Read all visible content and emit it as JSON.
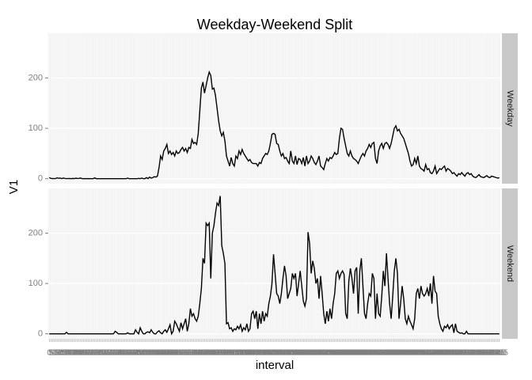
{
  "chart_data": {
    "type": "line",
    "title": "Weekday-Weekend Split",
    "x_label": "interval",
    "y_label": "V1",
    "categories": [
      0,
      5,
      10,
      15,
      20,
      25,
      30,
      35,
      40,
      45,
      50,
      55,
      100,
      105,
      110,
      115,
      120,
      125,
      130,
      135,
      140,
      145,
      150,
      155,
      200,
      205,
      210,
      215,
      220,
      225,
      230,
      235,
      240,
      245,
      250,
      255,
      300,
      305,
      310,
      315,
      320,
      325,
      330,
      335,
      340,
      345,
      350,
      355,
      400,
      405,
      410,
      415,
      420,
      425,
      430,
      435,
      440,
      445,
      450,
      455,
      500,
      505,
      510,
      515,
      520,
      525,
      530,
      535,
      540,
      545,
      550,
      555,
      600,
      605,
      610,
      615,
      620,
      625,
      630,
      635,
      640,
      645,
      650,
      655,
      700,
      705,
      710,
      715,
      720,
      725,
      730,
      735,
      740,
      745,
      750,
      755,
      800,
      805,
      810,
      815,
      820,
      825,
      830,
      835,
      840,
      845,
      850,
      855,
      900,
      905,
      910,
      915,
      920,
      925,
      930,
      935,
      940,
      945,
      950,
      955,
      1000,
      1005,
      1010,
      1015,
      1020,
      1025,
      1030,
      1035,
      1040,
      1045,
      1050,
      1055,
      1100,
      1105,
      1110,
      1115,
      1120,
      1125,
      1130,
      1135,
      1140,
      1145,
      1150,
      1155,
      1200,
      1205,
      1210,
      1215,
      1220,
      1225,
      1230,
      1235,
      1240,
      1245,
      1250,
      1255,
      1300,
      1305,
      1310,
      1315,
      1320,
      1325,
      1330,
      1335,
      1340,
      1345,
      1350,
      1355,
      1400,
      1405,
      1410,
      1415,
      1420,
      1425,
      1430,
      1435,
      1440,
      1445,
      1450,
      1455,
      1500,
      1505,
      1510,
      1515,
      1520,
      1525,
      1530,
      1535,
      1540,
      1545,
      1550,
      1555,
      1600,
      1605,
      1610,
      1615,
      1620,
      1625,
      1630,
      1635,
      1640,
      1645,
      1650,
      1655,
      1700,
      1705,
      1710,
      1715,
      1720,
      1725,
      1730,
      1735,
      1740,
      1745,
      1750,
      1755,
      1800,
      1805,
      1810,
      1815,
      1820,
      1825,
      1830,
      1835,
      1840,
      1845,
      1850,
      1855,
      1900,
      1905,
      1910,
      1915,
      1920,
      1925,
      1930,
      1935,
      1940,
      1945,
      1950,
      1955,
      2000,
      2005,
      2010,
      2015,
      2020,
      2025,
      2030,
      2035,
      2040,
      2045,
      2050,
      2055,
      2100,
      2105,
      2110,
      2115,
      2120,
      2125,
      2130,
      2135,
      2140,
      2145,
      2150,
      2155,
      2200,
      2205,
      2210,
      2215,
      2220,
      2225,
      2230,
      2235,
      2240,
      2245,
      2250,
      2255,
      2300,
      2305,
      2310,
      2315,
      2320,
      2325,
      2330,
      2335,
      2340,
      2345,
      2350,
      2355
    ],
    "ylim": [
      -10,
      289
    ],
    "yticks": [
      0,
      100,
      200
    ],
    "grid": true,
    "facet": "rows",
    "series": [
      {
        "name": "Weekday",
        "color": "#000000",
        "values": [
          2.3,
          0.5,
          0.2,
          0.2,
          0.1,
          1.6,
          0.7,
          1.1,
          0,
          1.3,
          0.3,
          0.1,
          0.1,
          0.3,
          0,
          0.4,
          0.2,
          0.8,
          0.3,
          0.5,
          1.2,
          0,
          0,
          0.2,
          0,
          0.1,
          0,
          0,
          0,
          1.5,
          0,
          0,
          0,
          0,
          0,
          0,
          0,
          0,
          0,
          0,
          0,
          0,
          0,
          0,
          0,
          0,
          0,
          0,
          0,
          0,
          1,
          0,
          0,
          0,
          0,
          0,
          0,
          0.5,
          0,
          1,
          0,
          0,
          2,
          0,
          3,
          1,
          2,
          4,
          3,
          5,
          22,
          45,
          38,
          55,
          60,
          68,
          50,
          55,
          48,
          52,
          45,
          55,
          50,
          52,
          58,
          62,
          55,
          60,
          52,
          62,
          60,
          78,
          70,
          72,
          68,
          90,
          135,
          180,
          192,
          170,
          185,
          200,
          212,
          205,
          178,
          180,
          165,
          140,
          115,
          95,
          85,
          92,
          75,
          45,
          35,
          25,
          42,
          30,
          25,
          45,
          40,
          55,
          48,
          58,
          50,
          45,
          40,
          35,
          38,
          32,
          30,
          30,
          30,
          25,
          32,
          30,
          40,
          45,
          50,
          48,
          55,
          70,
          88,
          90,
          88,
          70,
          68,
          55,
          45,
          50,
          40,
          42,
          35,
          30,
          55,
          35,
          30,
          45,
          28,
          40,
          38,
          30,
          42,
          25,
          45,
          30,
          35,
          45,
          40,
          32,
          28,
          35,
          45,
          25,
          22,
          18,
          30,
          40,
          35,
          42,
          40,
          45,
          52,
          48,
          50,
          80,
          100,
          98,
          80,
          65,
          50,
          45,
          55,
          45,
          40,
          38,
          35,
          30,
          38,
          45,
          50,
          45,
          55,
          60,
          68,
          62,
          70,
          72,
          40,
          30,
          55,
          65,
          70,
          60,
          70,
          72,
          68,
          60,
          70,
          85,
          100,
          105,
          95,
          98,
          90,
          85,
          80,
          70,
          60,
          50,
          35,
          25,
          28,
          40,
          30,
          45,
          25,
          20,
          18,
          15,
          28,
          18,
          20,
          12,
          10,
          15,
          25,
          10,
          15,
          20,
          18,
          22,
          25,
          15,
          20,
          18,
          15,
          10,
          12,
          8,
          5,
          10,
          8,
          12,
          8,
          5,
          10,
          12,
          8,
          10,
          5,
          3,
          2,
          5,
          8,
          4,
          3,
          2,
          4,
          6,
          3,
          2,
          5,
          4,
          3,
          2,
          1,
          2
        ]
      },
      {
        "name": "Weekend",
        "color": "#000000",
        "values": [
          0,
          0,
          0,
          0,
          0,
          0,
          0,
          0,
          0,
          0,
          0,
          3,
          0,
          0,
          0,
          0,
          0,
          0,
          0,
          0,
          0,
          0,
          0,
          0,
          0,
          0,
          0,
          0,
          0,
          0,
          0,
          0,
          0,
          0,
          0,
          0,
          0,
          0,
          0,
          0,
          0,
          0,
          5,
          3,
          0,
          0,
          0,
          0,
          0,
          0,
          2,
          0,
          0,
          0,
          0,
          8,
          3,
          0,
          12,
          5,
          0,
          0,
          3,
          4,
          2,
          8,
          3,
          0,
          0,
          4,
          6,
          2,
          0,
          5,
          8,
          3,
          10,
          18,
          0,
          5,
          25,
          20,
          12,
          5,
          22,
          10,
          20,
          30,
          5,
          20,
          50,
          35,
          40,
          30,
          25,
          35,
          60,
          90,
          150,
          140,
          220,
          215,
          220,
          110,
          200,
          215,
          240,
          260,
          255,
          274,
          175,
          160,
          140,
          20,
          22,
          10,
          12,
          5,
          10,
          8,
          15,
          10,
          18,
          5,
          12,
          8,
          20,
          5,
          10,
          40,
          45,
          30,
          45,
          10,
          40,
          20,
          45,
          25,
          40,
          35,
          60,
          75,
          100,
          158,
          120,
          80,
          75,
          60,
          80,
          110,
          135,
          115,
          70,
          80,
          90,
          120,
          110,
          120,
          75,
          100,
          125,
          95,
          65,
          55,
          70,
          202,
          180,
          120,
          145,
          130,
          100,
          110,
          70,
          115,
          80,
          40,
          20,
          45,
          25,
          50,
          30,
          60,
          80,
          120,
          125,
          110,
          120,
          125,
          118,
          40,
          30,
          105,
          130,
          110,
          80,
          125,
          132,
          40,
          125,
          150,
          95,
          40,
          30,
          60,
          80,
          75,
          120,
          110,
          30,
          80,
          40,
          35,
          75,
          125,
          95,
          160,
          110,
          60,
          30,
          75,
          125,
          150,
          120,
          30,
          60,
          95,
          70,
          30,
          20,
          35,
          25,
          18,
          10,
          30,
          80,
          90,
          70,
          95,
          80,
          75,
          80,
          90,
          75,
          100,
          60,
          115,
          85,
          80,
          35,
          20,
          10,
          5,
          15,
          12,
          18,
          10,
          15,
          18,
          2,
          20,
          5,
          3,
          1,
          2,
          0,
          0,
          5,
          0,
          0,
          0,
          0,
          0,
          0,
          0,
          0,
          0,
          0,
          0,
          0,
          0,
          0,
          0,
          0,
          0,
          0,
          0,
          0,
          0
        ]
      }
    ]
  }
}
